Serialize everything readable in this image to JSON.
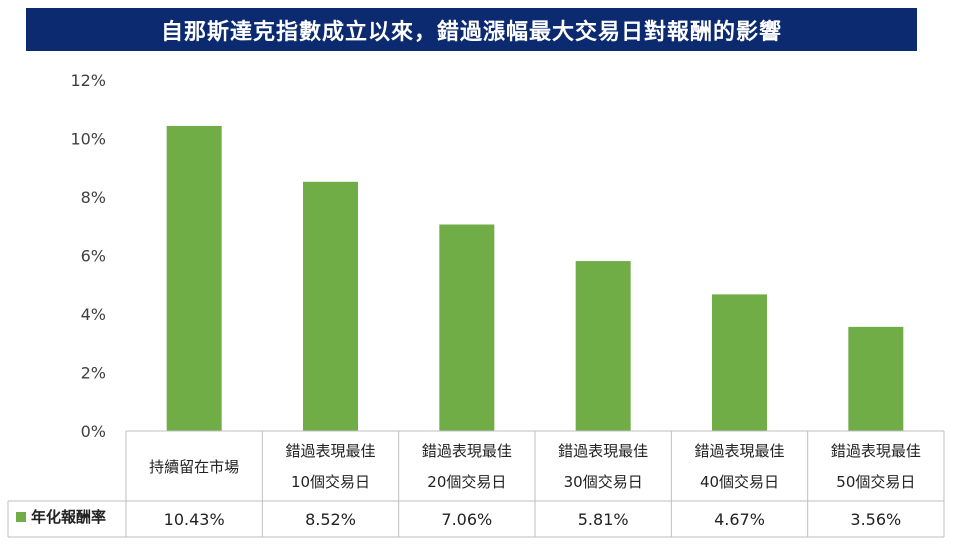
{
  "title": "自那斯達克指數成立以來，錯過漲幅最大交易日對報酬的影響",
  "chart_data": {
    "type": "bar",
    "categories": [
      [
        "持續留在市場"
      ],
      [
        "錯過表現最佳",
        "10個交易日"
      ],
      [
        "錯過表現最佳",
        "20個交易日"
      ],
      [
        "錯過表現最佳",
        "30個交易日"
      ],
      [
        "錯過表現最佳",
        "40個交易日"
      ],
      [
        "錯過表現最佳",
        "50個交易日"
      ]
    ],
    "series": [
      {
        "name": "年化報酬率",
        "values": [
          10.43,
          8.52,
          7.06,
          5.81,
          4.67,
          3.56
        ],
        "labels": [
          "10.43%",
          "8.52%",
          "7.06%",
          "5.81%",
          "4.67%",
          "3.56%"
        ],
        "color": "#70ad47"
      }
    ],
    "y_ticks": [
      "0%",
      "2%",
      "4%",
      "6%",
      "8%",
      "10%",
      "12%"
    ],
    "ylim": [
      0,
      12
    ],
    "grid": false,
    "data_table": true,
    "legend": "in-data-table"
  }
}
